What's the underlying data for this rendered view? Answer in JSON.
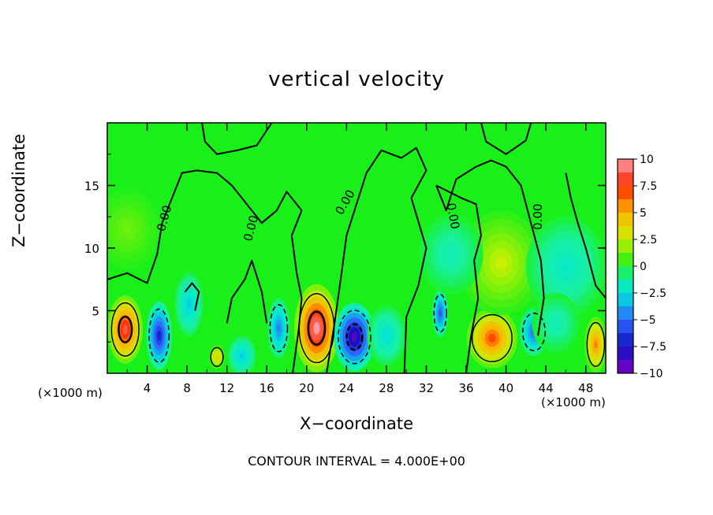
{
  "chart_data": {
    "type": "heatmap",
    "title": "vertical velocity",
    "xlabel": "X−coordinate",
    "ylabel": "Z−coordinate",
    "x_unit_label": "(×1000 m)",
    "xlim": [
      0,
      50
    ],
    "ylim": [
      0,
      20
    ],
    "x_ticks": [
      4,
      8,
      12,
      16,
      20,
      24,
      28,
      32,
      36,
      40,
      44,
      48
    ],
    "y_ticks": [
      5,
      10,
      15
    ],
    "contour_labels": [
      "0.00",
      "0.00",
      "0.00",
      "0.00",
      "0.00"
    ],
    "contour_note": "CONTOUR INTERVAL = 4.000E+00",
    "colorbar": {
      "labels": [
        "10",
        "7.5",
        "5",
        "2.5",
        "0",
        "−2.5",
        "−5",
        "−7.5",
        "−10"
      ],
      "range": [
        -10,
        10
      ]
    },
    "cells": [
      {
        "x": 1.8,
        "z": 3.5,
        "w": 8.5,
        "sx": 1.1,
        "sz": 1.7
      },
      {
        "x": 5.2,
        "z": 3.0,
        "w": -7.0,
        "sx": 0.8,
        "sz": 1.7
      },
      {
        "x": 8.2,
        "z": 5.5,
        "w": -3.0,
        "sx": 0.9,
        "sz": 1.6
      },
      {
        "x": 11.0,
        "z": 1.3,
        "w": 4.0,
        "sx": 0.5,
        "sz": 0.6
      },
      {
        "x": 13.5,
        "z": 1.4,
        "w": -3.0,
        "sx": 0.9,
        "sz": 1.0
      },
      {
        "x": 17.2,
        "z": 3.6,
        "w": -4.5,
        "sx": 0.7,
        "sz": 1.5
      },
      {
        "x": 21.0,
        "z": 3.6,
        "w": 10.0,
        "sx": 1.4,
        "sz": 2.2
      },
      {
        "x": 24.8,
        "z": 2.9,
        "w": -9.0,
        "sx": 1.3,
        "sz": 1.7
      },
      {
        "x": 28.0,
        "z": 3.0,
        "w": -2.5,
        "sx": 1.2,
        "sz": 1.5
      },
      {
        "x": 33.4,
        "z": 4.8,
        "w": -5.5,
        "sx": 0.5,
        "sz": 1.2
      },
      {
        "x": 38.6,
        "z": 2.8,
        "w": 7.0,
        "sx": 1.6,
        "sz": 1.5
      },
      {
        "x": 42.8,
        "z": 3.3,
        "w": -5.0,
        "sx": 0.9,
        "sz": 1.2
      },
      {
        "x": 49.0,
        "z": 2.3,
        "w": 6.0,
        "sx": 0.7,
        "sz": 1.4
      },
      {
        "x": 39.5,
        "z": 8.8,
        "w": 2.5,
        "sx": 2.6,
        "sz": 2.6
      },
      {
        "x": 46.0,
        "z": 8.5,
        "w": -2.0,
        "sx": 2.5,
        "sz": 2.5
      },
      {
        "x": 45.0,
        "z": 4.0,
        "w": -1.5,
        "sx": 1.5,
        "sz": 1.5
      },
      {
        "x": 34.5,
        "z": 9.5,
        "w": -1.5,
        "sx": 2.0,
        "sz": 2.0
      },
      {
        "x": 2.0,
        "z": 11.5,
        "w": 1.2,
        "sx": 2.0,
        "sz": 2.0
      }
    ]
  }
}
